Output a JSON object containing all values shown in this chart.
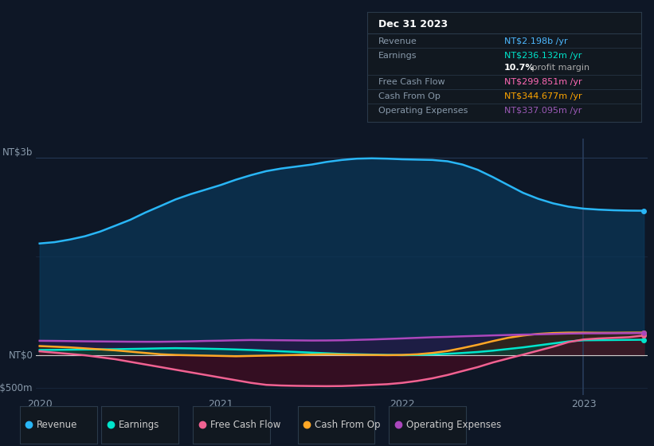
{
  "bg_color": "#0e1726",
  "plot_bg_color": "#0e1726",
  "info_box": {
    "title": "Dec 31 2023",
    "rows": [
      {
        "label": "Revenue",
        "value": "NT$2.198b /yr",
        "value_color": "#4db8ff"
      },
      {
        "label": "Earnings",
        "value": "NT$236.132m /yr",
        "value_color": "#00e5cc"
      },
      {
        "label": "",
        "value": "10.7% profit margin",
        "value_color": "#ffffff",
        "bold_part": "10.7%"
      },
      {
        "label": "Free Cash Flow",
        "value": "NT$299.851m /yr",
        "value_color": "#ff69b4"
      },
      {
        "label": "Cash From Op",
        "value": "NT$344.677m /yr",
        "value_color": "#ffa500"
      },
      {
        "label": "Operating Expenses",
        "value": "NT$337.095m /yr",
        "value_color": "#9b59b6"
      }
    ]
  },
  "ylabel_top": "NT$3b",
  "ylabel_zero": "NT$0",
  "ylabel_neg": "-NT$500m",
  "xlabel_ticks": [
    "2020",
    "2021",
    "2022",
    "2023"
  ],
  "ylim": [
    -600000000,
    3300000000
  ],
  "series": {
    "revenue": {
      "color": "#29b6f6",
      "fill_color": "#0a3a5c",
      "label": "Revenue",
      "dot_color": "#29b6f6"
    },
    "earnings": {
      "color": "#00e5cc",
      "fill_color": "#004d44",
      "label": "Earnings",
      "dot_color": "#00e5cc"
    },
    "free_cash_flow": {
      "color": "#f06292",
      "fill_color": "#4a0a20",
      "label": "Free Cash Flow",
      "dot_color": "#f06292"
    },
    "cash_from_op": {
      "color": "#ffa726",
      "fill_color": "#3d2800",
      "label": "Cash From Op",
      "dot_color": "#ffa726"
    },
    "operating_expenses": {
      "color": "#ab47bc",
      "fill_color": "#2d1040",
      "label": "Operating Expenses",
      "dot_color": "#ab47bc"
    }
  },
  "x_data": [
    0.0,
    0.083,
    0.167,
    0.25,
    0.333,
    0.417,
    0.5,
    0.583,
    0.667,
    0.75,
    0.833,
    0.917,
    1.0,
    1.083,
    1.167,
    1.25,
    1.333,
    1.417,
    1.5,
    1.583,
    1.667,
    1.75,
    1.833,
    1.917,
    2.0,
    2.083,
    2.167,
    2.25,
    2.333,
    2.417,
    2.5,
    2.583,
    2.667,
    2.75,
    2.833,
    2.917,
    3.0,
    3.083,
    3.167,
    3.25,
    3.333
  ],
  "revenue_data": [
    1700,
    1720,
    1760,
    1810,
    1880,
    1970,
    2060,
    2170,
    2270,
    2370,
    2450,
    2520,
    2590,
    2670,
    2740,
    2800,
    2840,
    2870,
    2900,
    2940,
    2970,
    2990,
    2995,
    2990,
    2980,
    2975,
    2970,
    2950,
    2900,
    2820,
    2710,
    2590,
    2470,
    2380,
    2310,
    2260,
    2230,
    2215,
    2205,
    2200,
    2198
  ],
  "earnings_data": [
    80,
    82,
    85,
    88,
    90,
    92,
    96,
    100,
    105,
    108,
    105,
    100,
    95,
    88,
    80,
    70,
    60,
    50,
    40,
    30,
    20,
    15,
    10,
    5,
    2,
    5,
    12,
    22,
    35,
    50,
    70,
    95,
    120,
    150,
    180,
    210,
    228,
    230,
    232,
    234,
    236
  ],
  "free_cash_flow_data": [
    60,
    40,
    20,
    0,
    -30,
    -60,
    -100,
    -140,
    -180,
    -220,
    -260,
    -300,
    -340,
    -380,
    -420,
    -450,
    -460,
    -465,
    -468,
    -470,
    -468,
    -460,
    -450,
    -440,
    -420,
    -390,
    -350,
    -300,
    -240,
    -180,
    -110,
    -50,
    10,
    70,
    130,
    200,
    240,
    255,
    265,
    275,
    300
  ],
  "cash_from_op_data": [
    140,
    130,
    120,
    105,
    90,
    75,
    55,
    35,
    15,
    5,
    0,
    -5,
    -10,
    -15,
    -10,
    -5,
    0,
    5,
    10,
    15,
    12,
    8,
    5,
    2,
    5,
    15,
    35,
    65,
    110,
    160,
    215,
    265,
    300,
    325,
    338,
    344,
    344,
    342,
    342,
    344,
    345
  ],
  "operating_expenses_data": [
    220,
    218,
    215,
    212,
    210,
    208,
    206,
    205,
    205,
    208,
    212,
    218,
    222,
    228,
    232,
    230,
    228,
    226,
    224,
    225,
    228,
    234,
    240,
    248,
    256,
    265,
    274,
    280,
    288,
    295,
    302,
    308,
    314,
    318,
    324,
    330,
    333,
    334,
    335,
    336,
    337
  ],
  "vline_x": 3.0,
  "legend_items": [
    {
      "label": "Revenue",
      "color": "#29b6f6"
    },
    {
      "label": "Earnings",
      "color": "#00e5cc"
    },
    {
      "label": "Free Cash Flow",
      "color": "#f06292"
    },
    {
      "label": "Cash From Op",
      "color": "#ffa726"
    },
    {
      "label": "Operating Expenses",
      "color": "#ab47bc"
    }
  ]
}
